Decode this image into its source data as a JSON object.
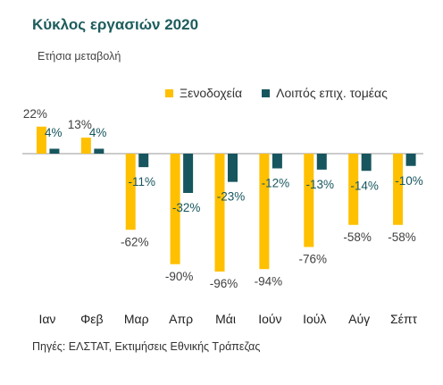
{
  "title": "Κύκλος εργασιών 2020",
  "subtitle": "Ετήσια μεταβολή",
  "source": "Πηγές: ΕΛΣΤΑΤ, Εκτιμήσεις Εθνικής Τράπεζας",
  "chart_data": {
    "type": "bar",
    "categories": [
      "Ιαν",
      "Φεβ",
      "Μαρ",
      "Απρ",
      "Μάι",
      "Ιούν",
      "Ιούλ",
      "Αύγ",
      "Σέπτ"
    ],
    "series": [
      {
        "name": "Ξενοδοχεία",
        "color": "#FFC000",
        "values": [
          22,
          13,
          -62,
          -90,
          -96,
          -94,
          -76,
          -58,
          -58
        ]
      },
      {
        "name": "Λοιπός επιχ. τομέας",
        "color": "#17565E",
        "values": [
          4,
          4,
          -11,
          -32,
          -23,
          -12,
          -13,
          -14,
          -10
        ]
      }
    ],
    "value_labels": [
      [
        "22%",
        "13%",
        "-62%",
        "-90%",
        "-96%",
        "-94%",
        "-76%",
        "-58%",
        "-58%"
      ],
      [
        "4%",
        "4%",
        "-11%",
        "-32%",
        "-23%",
        "-12%",
        "-13%",
        "-14%",
        "-10%"
      ]
    ],
    "legend_position": "top-right",
    "grid": false
  }
}
